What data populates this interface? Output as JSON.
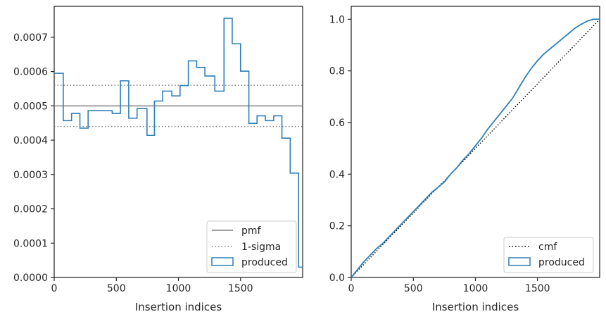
{
  "chart_data": [
    {
      "type": "histogram",
      "xlabel": "Insertion indices",
      "ylabel": "",
      "xlim": [
        0,
        2000
      ],
      "ylim": [
        0,
        0.00079
      ],
      "xticks": [
        0,
        500,
        1000,
        1500
      ],
      "yticks": [
        0.0,
        0.0001,
        0.0002,
        0.0003,
        0.0004,
        0.0005,
        0.0006,
        0.0007
      ],
      "ytick_labels": [
        "0.0000",
        "0.0001",
        "0.0002",
        "0.0003",
        "0.0004",
        "0.0005",
        "0.0006",
        "0.0007"
      ],
      "grid": false,
      "legend_position": "lower right",
      "reference_lines": [
        {
          "label": "pmf",
          "value": 0.0005,
          "style": "solid",
          "color": "#808080"
        },
        {
          "label": "1-sigma",
          "value": 0.00056,
          "style": "dotted",
          "color": "#808080"
        },
        {
          "label": "",
          "value": 0.00044,
          "style": "dotted",
          "color": "#808080"
        }
      ],
      "series": [
        {
          "name": "produced",
          "color": "#2c7fb8",
          "bin_edges": [
            0,
            73,
            140,
            207,
            273,
            340,
            467,
            533,
            600,
            667,
            747,
            807,
            873,
            947,
            1013,
            1080,
            1147,
            1213,
            1293,
            1367,
            1433,
            1500,
            1567,
            1633,
            1700,
            1767,
            1833,
            1900,
            1967,
            2000
          ],
          "values": [
            0.000595,
            0.000457,
            0.000478,
            0.000435,
            0.000486,
            0.000486,
            0.000478,
            0.000573,
            0.000464,
            0.000492,
            0.000414,
            0.000514,
            0.000543,
            0.000529,
            0.000559,
            0.000631,
            0.000612,
            0.000587,
            0.000543,
            0.000755,
            0.000681,
            0.000601,
            0.000449,
            0.000471,
            0.000457,
            0.000471,
            0.000406,
            0.000304,
            3e-05
          ]
        }
      ]
    },
    {
      "type": "line",
      "xlabel": "Insertion indices",
      "ylabel": "",
      "xlim": [
        0,
        2000
      ],
      "ylim": [
        0,
        1.05
      ],
      "xticks": [
        0,
        500,
        1000,
        1500
      ],
      "yticks": [
        0.0,
        0.2,
        0.4,
        0.6,
        0.8,
        1.0
      ],
      "ytick_labels": [
        "0.0",
        "0.2",
        "0.4",
        "0.6",
        "0.8",
        "1.0"
      ],
      "grid": false,
      "legend_position": "lower right",
      "series": [
        {
          "name": "cmf",
          "style": "dotted",
          "color": "#000000",
          "x": [
            0,
            2000
          ],
          "y": [
            0.0,
            1.0
          ]
        },
        {
          "name": "produced",
          "style": "solid",
          "color": "#2c7fb8",
          "x": [
            0,
            50,
            100,
            150,
            200,
            250,
            300,
            350,
            400,
            450,
            500,
            550,
            600,
            650,
            700,
            750,
            800,
            850,
            900,
            950,
            1000,
            1050,
            1100,
            1150,
            1200,
            1250,
            1300,
            1350,
            1400,
            1450,
            1500,
            1550,
            1600,
            1650,
            1700,
            1750,
            1800,
            1850,
            1900,
            1950,
            2000
          ],
          "y": [
            0.0,
            0.03,
            0.06,
            0.085,
            0.11,
            0.13,
            0.155,
            0.18,
            0.205,
            0.23,
            0.255,
            0.28,
            0.305,
            0.33,
            0.35,
            0.37,
            0.4,
            0.425,
            0.455,
            0.48,
            0.51,
            0.54,
            0.575,
            0.605,
            0.635,
            0.665,
            0.695,
            0.735,
            0.775,
            0.81,
            0.84,
            0.865,
            0.885,
            0.905,
            0.925,
            0.945,
            0.965,
            0.98,
            0.993,
            1.0,
            1.0
          ]
        }
      ]
    }
  ]
}
